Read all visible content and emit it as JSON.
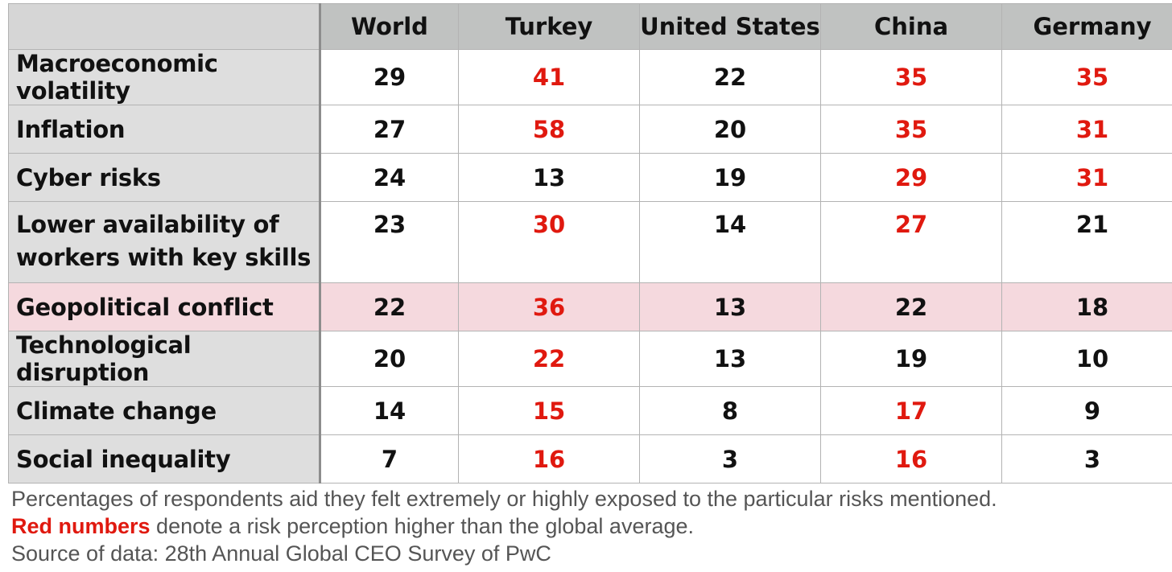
{
  "chart_data": {
    "type": "table",
    "columns": [
      "World",
      "Turkey",
      "United States",
      "China",
      "Germany"
    ],
    "rows": [
      {
        "label": "Macroeconomic volatility",
        "values": [
          29,
          41,
          22,
          35,
          35
        ]
      },
      {
        "label": "Inflation",
        "values": [
          27,
          58,
          20,
          35,
          31
        ]
      },
      {
        "label": "Cyber risks",
        "values": [
          24,
          13,
          19,
          29,
          31
        ]
      },
      {
        "label": "Lower availability of workers with key skills",
        "values": [
          23,
          30,
          14,
          27,
          21
        ]
      },
      {
        "label": "Geopolitical conflict",
        "values": [
          22,
          36,
          13,
          22,
          18
        ],
        "highlighted": true
      },
      {
        "label": "Technological disruption",
        "values": [
          20,
          22,
          13,
          19,
          10
        ]
      },
      {
        "label": "Climate change",
        "values": [
          14,
          15,
          8,
          17,
          9
        ]
      },
      {
        "label": "Social inequality",
        "values": [
          7,
          16,
          3,
          16,
          3
        ]
      }
    ],
    "colors": {
      "above_average": "#e0190f",
      "normal": "#111111",
      "header_bg": "#c0c2c1",
      "label_bg": "#dedede",
      "highlight_bg": "#f5d9de"
    }
  },
  "notes": {
    "line1": "Percentages of respondents aid they felt extremely or highly exposed to the particular risks mentioned.",
    "line2_red": "Red numbers",
    "line2_rest": " denote a risk perception higher than the global average.",
    "line3": "Source of data: 28th Annual Global CEO Survey of PwC"
  }
}
